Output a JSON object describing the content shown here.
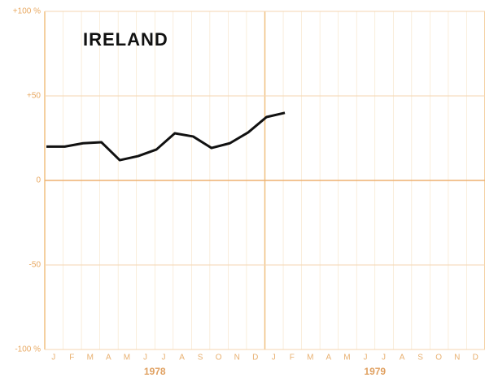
{
  "chart_data": {
    "type": "line",
    "title": "IRELAND",
    "categories": [
      "J",
      "F",
      "M",
      "A",
      "M",
      "J",
      "J",
      "A",
      "S",
      "O",
      "N",
      "D",
      "J",
      "F",
      "M",
      "A",
      "M",
      "J",
      "J",
      "A",
      "S",
      "O",
      "N",
      "D"
    ],
    "years": [
      "1978",
      "1979"
    ],
    "series": [
      {
        "name": "Ireland",
        "color": "#111111",
        "values": [
          20,
          20,
          22,
          22.6,
          12,
          14.4,
          18.3,
          27.9,
          26,
          19.2,
          22,
          28.4,
          37.5,
          40,
          null,
          null,
          null,
          null,
          null,
          null,
          null,
          null,
          null,
          null
        ]
      }
    ],
    "ylim": [
      -100,
      100
    ],
    "yticks": [
      {
        "value": 100,
        "label": "+100 %"
      },
      {
        "value": 50,
        "label": "+50"
      },
      0,
      -50,
      {
        "value": -100,
        "label": "-100 %"
      }
    ],
    "grid": true
  }
}
